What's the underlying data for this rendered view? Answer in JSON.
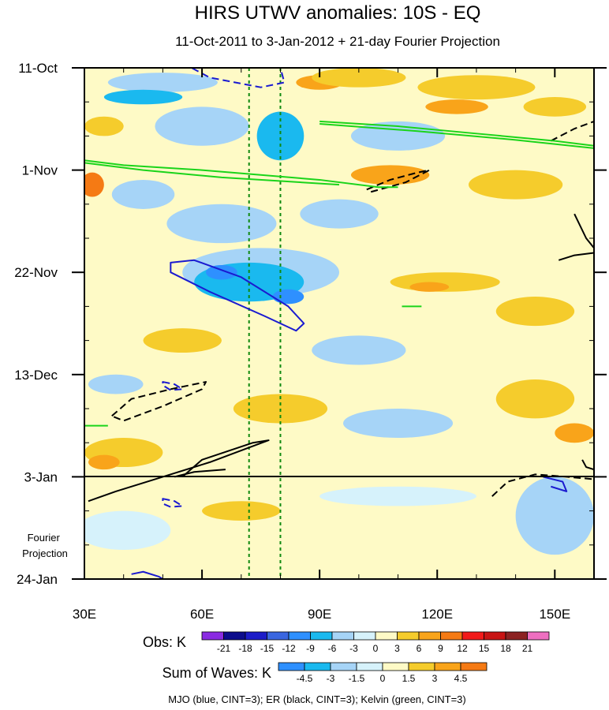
{
  "chart_data": {
    "type": "heatmap",
    "title": "HIRS UTWV anomalies: 10S - EQ",
    "subtitle": "11-Oct-2011 to 3-Jan-2012 + 21-day Fourier Projection",
    "xlim": [
      30,
      160
    ],
    "ylim_days": [
      0,
      105
    ],
    "x_ticks": [
      {
        "value": 30,
        "label": "30E"
      },
      {
        "value": 60,
        "label": "60E"
      },
      {
        "value": 90,
        "label": "90E"
      },
      {
        "value": 120,
        "label": "120E"
      },
      {
        "value": 150,
        "label": "150E"
      }
    ],
    "y_ticks": [
      {
        "day": 0,
        "label": "11-Oct"
      },
      {
        "day": 21,
        "label": "1-Nov"
      },
      {
        "day": 42,
        "label": "22-Nov"
      },
      {
        "day": 63,
        "label": "13-Dec"
      },
      {
        "day": 84,
        "label": "3-Jan"
      },
      {
        "day": 105,
        "label": "24-Jan"
      }
    ],
    "projection_start_day": 84,
    "projection_label_lines": [
      "Fourier",
      "Projection"
    ],
    "reference_lines_lon": [
      72,
      80
    ],
    "obs_colorbar": {
      "label": "Obs: K",
      "levels": [
        "-21",
        "-18",
        "-15",
        "-12",
        "-9",
        "-6",
        "-3",
        "0",
        "3",
        "6",
        "9",
        "12",
        "15",
        "18",
        "21"
      ],
      "colors": [
        "#8a2be2",
        "#0c0c8c",
        "#1c1cc8",
        "#3a66e0",
        "#2e90ff",
        "#1ab9ef",
        "#a6d4f7",
        "#d6f2fb",
        "#fefac6",
        "#f5cc2c",
        "#f9a41a",
        "#f57a14",
        "#f21a1a",
        "#c81414",
        "#8c2222",
        "#ee6fc0"
      ]
    },
    "waves_colorbar": {
      "label": "Sum of Waves: K",
      "levels": [
        "-4.5",
        "-3",
        "-1.5",
        "0",
        "1.5",
        "3",
        "4.5"
      ],
      "colors": [
        "#2e90ff",
        "#1ab9ef",
        "#a6d4f7",
        "#d6f2fb",
        "#fefac6",
        "#f5cc2c",
        "#f9a41a",
        "#f57a14"
      ]
    },
    "legend_text": "MJO (blue, CINT=3); ER (black, CINT=3); Kelvin (green, CINT=3)",
    "field_blobs": [
      {
        "lon": 50,
        "day": 3,
        "rlon": 14,
        "rday": 2,
        "level": "#a6d4f7"
      },
      {
        "lon": 45,
        "day": 6,
        "rlon": 10,
        "rday": 1.5,
        "level": "#1ab9ef"
      },
      {
        "lon": 90,
        "day": 3,
        "rlon": 6,
        "rday": 1.5,
        "level": "#f9a41a"
      },
      {
        "lon": 100,
        "day": 2,
        "rlon": 12,
        "rday": 2,
        "level": "#f5cc2c"
      },
      {
        "lon": 130,
        "day": 4,
        "rlon": 15,
        "rday": 2.5,
        "level": "#f5cc2c"
      },
      {
        "lon": 125,
        "day": 8,
        "rlon": 8,
        "rday": 1.5,
        "level": "#f9a41a"
      },
      {
        "lon": 60,
        "day": 12,
        "rlon": 12,
        "rday": 4,
        "level": "#a6d4f7"
      },
      {
        "lon": 80,
        "day": 14,
        "rlon": 6,
        "rday": 5,
        "level": "#1ab9ef"
      },
      {
        "lon": 35,
        "day": 12,
        "rlon": 5,
        "rday": 2,
        "level": "#f5cc2c"
      },
      {
        "lon": 110,
        "day": 14,
        "rlon": 12,
        "rday": 3,
        "level": "#a6d4f7"
      },
      {
        "lon": 150,
        "day": 8,
        "rlon": 8,
        "rday": 2,
        "level": "#f5cc2c"
      },
      {
        "lon": 108,
        "day": 22,
        "rlon": 10,
        "rday": 2,
        "level": "#f9a41a"
      },
      {
        "lon": 140,
        "day": 24,
        "rlon": 12,
        "rday": 3,
        "level": "#f5cc2c"
      },
      {
        "lon": 32,
        "day": 24,
        "rlon": 3,
        "rday": 2.5,
        "level": "#f57a14"
      },
      {
        "lon": 45,
        "day": 26,
        "rlon": 8,
        "rday": 3,
        "level": "#a6d4f7"
      },
      {
        "lon": 65,
        "day": 32,
        "rlon": 14,
        "rday": 4,
        "level": "#a6d4f7"
      },
      {
        "lon": 95,
        "day": 30,
        "rlon": 10,
        "rday": 3,
        "level": "#a6d4f7"
      },
      {
        "lon": 75,
        "day": 42,
        "rlon": 20,
        "rday": 5,
        "level": "#a6d4f7"
      },
      {
        "lon": 72,
        "day": 44,
        "rlon": 14,
        "rday": 4,
        "level": "#1ab9ef"
      },
      {
        "lon": 65,
        "day": 42,
        "rlon": 4,
        "rday": 1.5,
        "level": "#2e90ff"
      },
      {
        "lon": 82,
        "day": 47,
        "rlon": 4,
        "rday": 1.5,
        "level": "#2e90ff"
      },
      {
        "lon": 122,
        "day": 44,
        "rlon": 14,
        "rday": 2,
        "level": "#f5cc2c"
      },
      {
        "lon": 118,
        "day": 45,
        "rlon": 5,
        "rday": 1,
        "level": "#f9a41a"
      },
      {
        "lon": 145,
        "day": 50,
        "rlon": 10,
        "rday": 3,
        "level": "#f5cc2c"
      },
      {
        "lon": 55,
        "day": 56,
        "rlon": 10,
        "rday": 2.5,
        "level": "#f5cc2c"
      },
      {
        "lon": 100,
        "day": 58,
        "rlon": 12,
        "rday": 3,
        "level": "#a6d4f7"
      },
      {
        "lon": 38,
        "day": 65,
        "rlon": 7,
        "rday": 2,
        "level": "#a6d4f7"
      },
      {
        "lon": 80,
        "day": 70,
        "rlon": 12,
        "rday": 3,
        "level": "#f5cc2c"
      },
      {
        "lon": 110,
        "day": 73,
        "rlon": 14,
        "rday": 3,
        "level": "#a6d4f7"
      },
      {
        "lon": 145,
        "day": 68,
        "rlon": 10,
        "rday": 4,
        "level": "#f5cc2c"
      },
      {
        "lon": 155,
        "day": 75,
        "rlon": 5,
        "rday": 2,
        "level": "#f9a41a"
      },
      {
        "lon": 40,
        "day": 79,
        "rlon": 10,
        "rday": 3,
        "level": "#f5cc2c"
      },
      {
        "lon": 35,
        "day": 81,
        "rlon": 4,
        "rday": 1.5,
        "level": "#f9a41a"
      },
      {
        "lon": 70,
        "day": 91,
        "rlon": 10,
        "rday": 2,
        "level": "#f5cc2c"
      },
      {
        "lon": 40,
        "day": 95,
        "rlon": 12,
        "rday": 4,
        "level": "#d6f2fb"
      },
      {
        "lon": 150,
        "day": 92,
        "rlon": 10,
        "rday": 8,
        "level": "#a6d4f7"
      },
      {
        "lon": 110,
        "day": 88,
        "rlon": 20,
        "rday": 2,
        "level": "#d6f2fb"
      }
    ],
    "contours": [
      {
        "name": "mjo-contour",
        "wave": "MJO",
        "color": "#1a1ad0",
        "dash": "dashed",
        "points": [
          [
            55,
            -1
          ],
          [
            62,
            2
          ],
          [
            75,
            4
          ],
          [
            81,
            3
          ],
          [
            80,
            0
          ]
        ]
      },
      {
        "name": "mjo-contour",
        "wave": "MJO",
        "color": "#1a1ad0",
        "dash": "solid",
        "closed": true,
        "points": [
          [
            52,
            40
          ],
          [
            58,
            39.5
          ],
          [
            70,
            43
          ],
          [
            82,
            49
          ],
          [
            86,
            52.5
          ],
          [
            84,
            54
          ],
          [
            76,
            51
          ],
          [
            62,
            46
          ],
          [
            52,
            42
          ]
        ]
      },
      {
        "name": "mjo-contour",
        "wave": "MJO",
        "color": "#1a1ad0",
        "dash": "dashed",
        "closed": true,
        "points": [
          [
            50,
            64.5
          ],
          [
            53,
            65
          ],
          [
            55,
            66
          ],
          [
            52,
            66.2
          ],
          [
            50,
            65.2
          ]
        ]
      },
      {
        "name": "mjo-contour",
        "wave": "MJO",
        "color": "#1a1ad0",
        "dash": "dashed",
        "closed": true,
        "points": [
          [
            50,
            88.5
          ],
          [
            53,
            89
          ],
          [
            55,
            90
          ],
          [
            52,
            90.2
          ],
          [
            50,
            89.5
          ]
        ]
      },
      {
        "name": "mjo-contour",
        "wave": "MJO",
        "color": "#1a1ad0",
        "dash": "solid",
        "points": [
          [
            147,
            84
          ],
          [
            152,
            85
          ],
          [
            153,
            87
          ],
          [
            149,
            86
          ]
        ]
      },
      {
        "name": "mjo-contour",
        "wave": "MJO",
        "color": "#1a1ad0",
        "dash": "solid",
        "points": [
          [
            42,
            104
          ],
          [
            45,
            103.5
          ],
          [
            49,
            104.5
          ],
          [
            50,
            105
          ]
        ]
      },
      {
        "name": "er-contour",
        "wave": "ER",
        "color": "#000000",
        "dash": "dashed",
        "closed": true,
        "points": [
          [
            37,
            71.5
          ],
          [
            42,
            68
          ],
          [
            52,
            66
          ],
          [
            61,
            64.5
          ],
          [
            60,
            66
          ],
          [
            50,
            69.5
          ],
          [
            40,
            72.5
          ]
        ]
      },
      {
        "name": "er-contour",
        "wave": "ER",
        "color": "#000000",
        "dash": "dashed",
        "points": [
          [
            102,
            25
          ],
          [
            108,
            23
          ],
          [
            115,
            21.5
          ],
          [
            118,
            21
          ],
          [
            112,
            23.5
          ],
          [
            103,
            25.5
          ]
        ]
      },
      {
        "name": "er-contour",
        "wave": "ER",
        "color": "#000000",
        "dash": "dashed",
        "points": [
          [
            149,
            15
          ],
          [
            155,
            12.5
          ],
          [
            160,
            11
          ]
        ]
      },
      {
        "name": "er-contour",
        "wave": "ER",
        "color": "#000000",
        "dash": "dashed",
        "points": [
          [
            134,
            88
          ],
          [
            138,
            85
          ],
          [
            145,
            83.5
          ],
          [
            153,
            84
          ],
          [
            160,
            84.5
          ]
        ]
      },
      {
        "name": "er-contour",
        "wave": "ER",
        "color": "#000000",
        "dash": "solid",
        "points": [
          [
            31,
            89
          ],
          [
            38,
            87
          ],
          [
            50,
            84
          ],
          [
            62,
            81
          ],
          [
            72,
            78
          ],
          [
            77,
            76.5
          ],
          [
            73,
            77
          ],
          [
            60,
            80.5
          ],
          [
            55,
            84
          ]
        ]
      },
      {
        "name": "er-contour",
        "wave": "ER",
        "color": "#000000",
        "dash": "solid",
        "points": [
          [
            53,
            84
          ],
          [
            58,
            83
          ],
          [
            66,
            82.5
          ]
        ]
      },
      {
        "name": "er-contour",
        "wave": "ER",
        "color": "#000000",
        "dash": "solid",
        "points": [
          [
            151,
            39.5
          ],
          [
            155,
            38.5
          ],
          [
            160,
            38
          ]
        ]
      },
      {
        "name": "er-contour",
        "wave": "ER",
        "color": "#000000",
        "dash": "solid",
        "points": [
          [
            155,
            30
          ],
          [
            158,
            35
          ],
          [
            160,
            37
          ]
        ]
      },
      {
        "name": "er-contour",
        "wave": "ER",
        "color": "#000000",
        "dash": "solid",
        "points": [
          [
            157,
            80.5
          ],
          [
            158,
            82
          ],
          [
            160,
            82.5
          ]
        ]
      },
      {
        "name": "kelvin-contour",
        "wave": "Kelvin",
        "color": "#1ad41a",
        "dash": "solid",
        "points": [
          [
            30,
            19
          ],
          [
            40,
            20
          ],
          [
            60,
            21
          ],
          [
            75,
            22
          ],
          [
            90,
            23
          ],
          [
            105,
            24.5
          ],
          [
            110,
            24.5
          ]
        ]
      },
      {
        "name": "kelvin-contour",
        "wave": "Kelvin",
        "color": "#1ad41a",
        "dash": "solid",
        "points": [
          [
            30,
            19.5
          ],
          [
            45,
            21
          ],
          [
            65,
            22.5
          ],
          [
            85,
            23.5
          ],
          [
            95,
            24
          ]
        ]
      },
      {
        "name": "kelvin-contour",
        "wave": "Kelvin",
        "color": "#1ad41a",
        "dash": "solid",
        "points": [
          [
            90,
            11
          ],
          [
            110,
            12
          ],
          [
            130,
            13.5
          ],
          [
            150,
            15
          ],
          [
            160,
            16
          ]
        ]
      },
      {
        "name": "kelvin-contour",
        "wave": "Kelvin",
        "color": "#1ad41a",
        "dash": "solid",
        "points": [
          [
            90,
            11.5
          ],
          [
            115,
            13
          ],
          [
            140,
            14.8
          ],
          [
            160,
            16.5
          ]
        ]
      },
      {
        "name": "kelvin-contour",
        "wave": "Kelvin",
        "color": "#1ad41a",
        "dash": "solid",
        "points": [
          [
            111,
            49
          ],
          [
            116,
            49
          ]
        ]
      },
      {
        "name": "kelvin-contour",
        "wave": "Kelvin",
        "color": "#1ad41a",
        "dash": "solid",
        "points": [
          [
            30,
            73.5
          ],
          [
            36,
            73.5
          ]
        ]
      }
    ]
  }
}
